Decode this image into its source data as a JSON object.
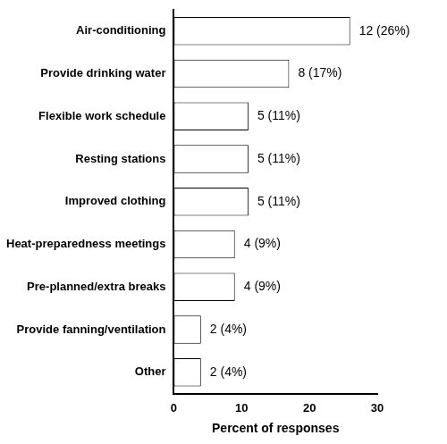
{
  "chart_data": {
    "type": "bar",
    "orientation": "horizontal",
    "categories": [
      "Air-conditioning",
      "Provide drinking water",
      "Flexible work schedule",
      "Resting stations",
      "Improved clothing",
      "Heat-preparedness meetings",
      "Pre-planned/extra breaks",
      "Provide fanning/ventilation",
      "Other"
    ],
    "values": [
      26,
      17,
      11,
      11,
      11,
      9,
      9,
      4,
      4
    ],
    "value_labels": [
      "12 (26%)",
      "8 (17%)",
      "5 (11%)",
      "5 (11%)",
      "5 (11%)",
      "4 (9%)",
      "4 (9%)",
      "2 (4%)",
      "2 (4%)"
    ],
    "color": "#ffffff",
    "x_label": "Percent of responses",
    "xlim": [
      0,
      30
    ],
    "xticks": [
      0,
      10,
      20,
      30
    ],
    "grid": false,
    "data_labels": true
  }
}
